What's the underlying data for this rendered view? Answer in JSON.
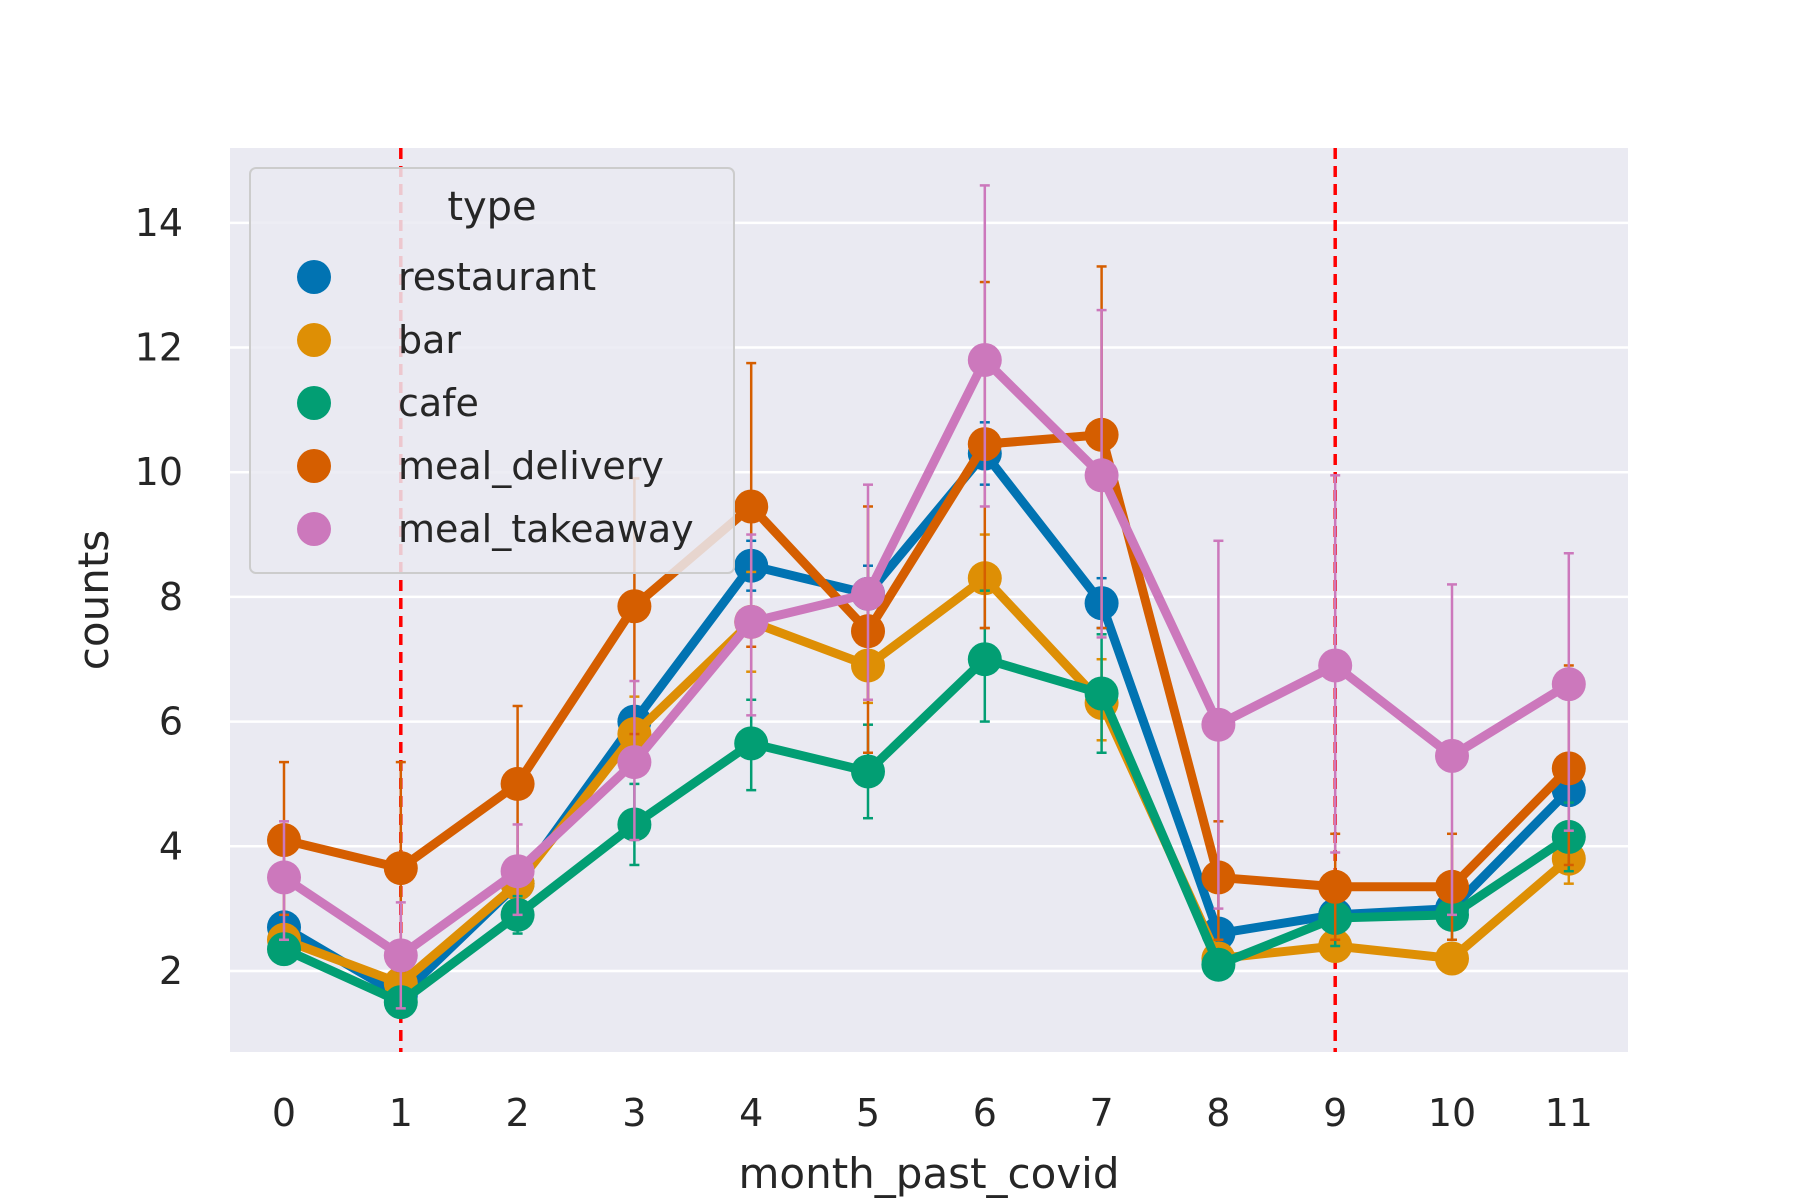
{
  "chart_data": {
    "type": "line",
    "xlabel": "month_past_covid",
    "ylabel": "counts",
    "categories": [
      "0",
      "1",
      "2",
      "3",
      "4",
      "5",
      "6",
      "7",
      "8",
      "9",
      "10",
      "11"
    ],
    "ylim": [
      0.7,
      15.2
    ],
    "yticks": [
      2,
      4,
      6,
      8,
      10,
      12,
      14
    ],
    "grid": true,
    "legend": {
      "title": "type",
      "placement": "upper-left"
    },
    "vlines": [
      1,
      9
    ],
    "vline_color": "#ff0000",
    "series": [
      {
        "name": "restaurant",
        "color": "#0173b2",
        "values": [
          2.7,
          1.6,
          3.4,
          6.0,
          8.5,
          8.05,
          10.3,
          7.9,
          2.6,
          2.9,
          3.0,
          4.9
        ],
        "err_low": [
          null,
          null,
          null,
          null,
          8.1,
          7.6,
          9.8,
          7.5,
          null,
          null,
          null,
          null
        ],
        "err_high": [
          null,
          null,
          null,
          null,
          8.9,
          8.5,
          10.8,
          8.3,
          null,
          null,
          null,
          null
        ]
      },
      {
        "name": "bar",
        "color": "#de8f05",
        "values": [
          2.5,
          1.8,
          3.4,
          5.8,
          7.6,
          6.9,
          8.3,
          6.3,
          2.2,
          2.4,
          2.2,
          3.8
        ],
        "err_low": [
          null,
          null,
          null,
          5.2,
          6.8,
          6.3,
          7.5,
          5.7,
          null,
          null,
          null,
          3.4
        ],
        "err_high": [
          null,
          null,
          null,
          6.4,
          8.4,
          7.5,
          9.0,
          7.0,
          null,
          null,
          null,
          4.2
        ]
      },
      {
        "name": "cafe",
        "color": "#029e73",
        "values": [
          2.35,
          1.5,
          2.9,
          4.35,
          5.65,
          5.2,
          7.0,
          6.45,
          2.1,
          2.85,
          2.9,
          4.15
        ],
        "err_low": [
          2.2,
          1.3,
          2.6,
          3.7,
          4.9,
          4.45,
          6.0,
          5.5,
          2.0,
          2.4,
          2.5,
          3.6
        ],
        "err_high": [
          2.5,
          1.7,
          3.2,
          5.0,
          6.35,
          5.95,
          8.1,
          7.4,
          2.3,
          3.3,
          3.3,
          4.7
        ]
      },
      {
        "name": "meal_delivery",
        "color": "#d55e00",
        "values": [
          4.1,
          3.65,
          5.0,
          7.85,
          9.45,
          7.45,
          10.45,
          10.6,
          3.5,
          3.35,
          3.35,
          5.25
        ],
        "err_low": [
          2.9,
          2.0,
          3.7,
          5.8,
          7.2,
          5.5,
          7.5,
          7.5,
          2.5,
          2.5,
          2.5,
          3.7
        ],
        "err_high": [
          5.35,
          5.35,
          6.25,
          9.9,
          11.75,
          9.45,
          13.05,
          13.3,
          4.4,
          4.2,
          4.2,
          6.9
        ]
      },
      {
        "name": "meal_takeaway",
        "color": "#cc78bc",
        "values": [
          3.5,
          2.25,
          3.6,
          5.35,
          7.6,
          8.05,
          11.8,
          9.95,
          5.95,
          6.9,
          5.45,
          6.6
        ],
        "err_low": [
          2.5,
          1.4,
          2.9,
          4.1,
          6.1,
          6.35,
          9.45,
          7.35,
          3.0,
          3.9,
          2.9,
          4.25
        ],
        "err_high": [
          4.4,
          3.1,
          4.35,
          6.65,
          9.0,
          9.8,
          14.6,
          12.6,
          8.9,
          9.95,
          8.2,
          8.7
        ]
      }
    ]
  }
}
